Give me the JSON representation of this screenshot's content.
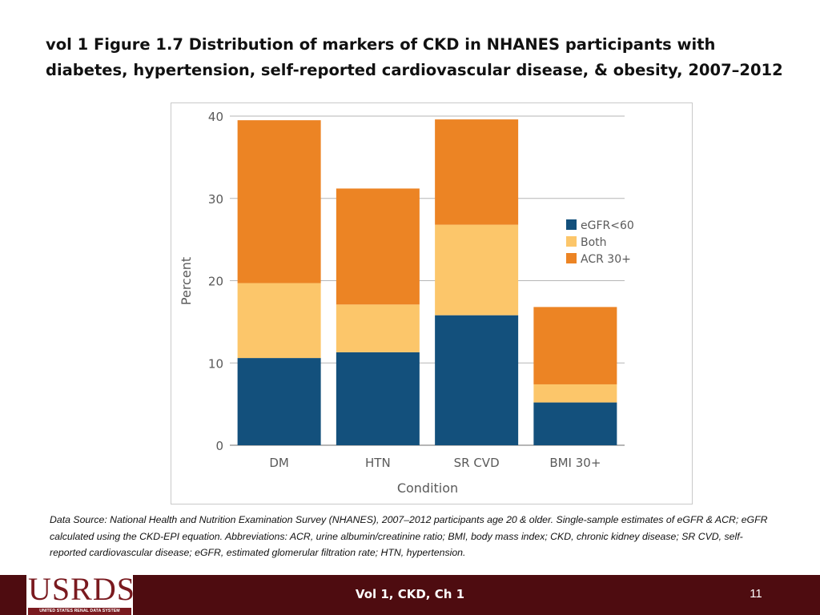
{
  "slide": {
    "title": "vol 1 Figure 1.7  Distribution of markers of CKD in NHANES participants with diabetes, hypertension, self-reported cardiovascular disease, & obesity, 2007–2012",
    "source_note": "Data Source: National Health and Nutrition Examination Survey (NHANES), 2007–2012 participants age 20 & older. Single-sample estimates of eGFR & ACR; eGFR calculated using the CKD-EPI equation. Abbreviations: ACR, urine albumin/creatinine ratio; BMI, body mass index; CKD, chronic kidney disease; SR CVD, self-reported cardiovascular disease; eGFR, estimated glomerular filtration rate; HTN, hypertension."
  },
  "chart_data": {
    "type": "bar",
    "stacked": true,
    "title": "",
    "xlabel": "Condition",
    "ylabel": "Percent",
    "ylim": [
      0,
      40
    ],
    "yticks": [
      0,
      10,
      20,
      30,
      40
    ],
    "grid": true,
    "legend_position": "right",
    "categories": [
      "DM",
      "HTN",
      "SR CVD",
      "BMI 30+"
    ],
    "series": [
      {
        "name": "eGFR<60",
        "color": "#13507c",
        "values": [
          10.6,
          11.3,
          15.8,
          5.2
        ]
      },
      {
        "name": "Both",
        "color": "#fcc66a",
        "values": [
          9.1,
          5.8,
          11.0,
          2.2
        ]
      },
      {
        "name": "ACR 30+",
        "color": "#ec8424",
        "values": [
          19.8,
          14.1,
          12.8,
          9.4
        ]
      }
    ]
  },
  "footer": {
    "logo_text": "USRDS",
    "logo_subtext": "UNITED STATES RENAL DATA SYSTEM",
    "center_label": "Vol 1, CKD, Ch 1",
    "page_number": "11"
  }
}
